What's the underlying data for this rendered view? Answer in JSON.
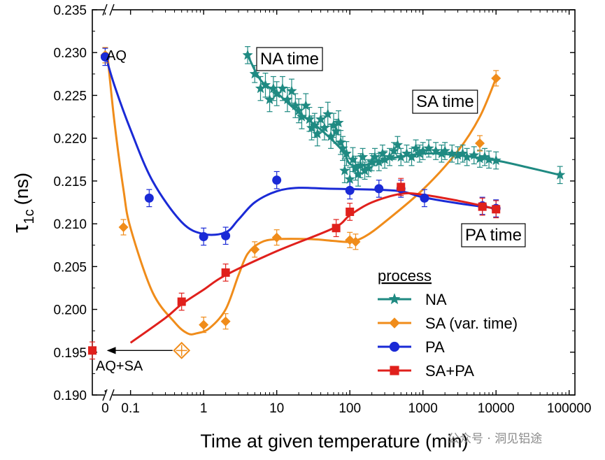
{
  "chart_data": {
    "type": "line",
    "xlabel": "Time at given temperature (min)",
    "ylabel_main": "τ",
    "ylabel_sub": "1c",
    "ylabel_unit": "(ns)",
    "xscale": "log",
    "xlim": [
      0.03,
      120000
    ],
    "ylim": [
      0.19,
      0.235
    ],
    "x_ticks": [
      {
        "label": "0",
        "value": 0.045
      },
      {
        "label": "0.1",
        "value": 0.1
      },
      {
        "label": "1",
        "value": 1
      },
      {
        "label": "10",
        "value": 10
      },
      {
        "label": "100",
        "value": 100
      },
      {
        "label": "1000",
        "value": 1000
      },
      {
        "label": "10000",
        "value": 10000
      },
      {
        "label": "100000",
        "value": 100000
      }
    ],
    "y_ticks": [
      "0.190",
      "0.195",
      "0.200",
      "0.205",
      "0.210",
      "0.215",
      "0.220",
      "0.225",
      "0.230",
      "0.235"
    ],
    "legend_title": "process",
    "series": [
      {
        "name": "NA",
        "color": "#1f8a82",
        "marker": "star",
        "points": [
          [
            4,
            0.2297
          ],
          [
            5,
            0.2275
          ],
          [
            6,
            0.2258
          ],
          [
            7,
            0.2262
          ],
          [
            8,
            0.2245
          ],
          [
            9,
            0.2258
          ],
          [
            10,
            0.2252
          ],
          [
            12,
            0.2258
          ],
          [
            14,
            0.2245
          ],
          [
            16,
            0.2255
          ],
          [
            18,
            0.2238
          ],
          [
            20,
            0.2232
          ],
          [
            22,
            0.2225
          ],
          [
            25,
            0.2238
          ],
          [
            28,
            0.2222
          ],
          [
            30,
            0.2212
          ],
          [
            33,
            0.2215
          ],
          [
            36,
            0.2205
          ],
          [
            40,
            0.2222
          ],
          [
            45,
            0.2212
          ],
          [
            50,
            0.2228
          ],
          [
            55,
            0.2202
          ],
          [
            60,
            0.2215
          ],
          [
            65,
            0.2208
          ],
          [
            70,
            0.2218
          ],
          [
            75,
            0.2195
          ],
          [
            80,
            0.2188
          ],
          [
            85,
            0.2162
          ],
          [
            90,
            0.2182
          ],
          [
            100,
            0.2152
          ],
          [
            110,
            0.2175
          ],
          [
            120,
            0.2165
          ],
          [
            130,
            0.2158
          ],
          [
            140,
            0.2168
          ],
          [
            150,
            0.2178
          ],
          [
            160,
            0.2162
          ],
          [
            180,
            0.2165
          ],
          [
            200,
            0.2172
          ],
          [
            220,
            0.2178
          ],
          [
            250,
            0.2172
          ],
          [
            280,
            0.2182
          ],
          [
            300,
            0.2175
          ],
          [
            350,
            0.2178
          ],
          [
            400,
            0.2185
          ],
          [
            450,
            0.2192
          ],
          [
            500,
            0.2178
          ],
          [
            600,
            0.2182
          ],
          [
            700,
            0.2178
          ],
          [
            800,
            0.2188
          ],
          [
            900,
            0.2182
          ],
          [
            1000,
            0.2185
          ],
          [
            1200,
            0.2188
          ],
          [
            1500,
            0.2185
          ],
          [
            1800,
            0.2182
          ],
          [
            2000,
            0.2185
          ],
          [
            2500,
            0.2182
          ],
          [
            3000,
            0.218
          ],
          [
            3500,
            0.2182
          ],
          [
            4000,
            0.2178
          ],
          [
            5000,
            0.218
          ],
          [
            6000,
            0.2176
          ],
          [
            7000,
            0.2178
          ],
          [
            8000,
            0.2175
          ],
          [
            10000,
            0.2174
          ],
          [
            75000,
            0.2157
          ]
        ],
        "fit": [
          [
            4,
            0.2297
          ],
          [
            6,
            0.2268
          ],
          [
            10,
            0.2253
          ],
          [
            20,
            0.223
          ],
          [
            40,
            0.221
          ],
          [
            80,
            0.2185
          ],
          [
            100,
            0.217
          ],
          [
            150,
            0.2168
          ],
          [
            300,
            0.2175
          ],
          [
            1000,
            0.2182
          ],
          [
            3000,
            0.218
          ],
          [
            10000,
            0.2174
          ],
          [
            30000,
            0.2165
          ],
          [
            75000,
            0.2157
          ]
        ]
      },
      {
        "name": "SA (var. time)",
        "color": "#f08c1a",
        "marker": "diamond",
        "points": [
          [
            0.045,
            0.2297
          ],
          [
            0.08,
            0.2096
          ],
          [
            1,
            0.1982
          ],
          [
            2,
            0.1986
          ],
          [
            5,
            0.207
          ],
          [
            10,
            0.2084
          ],
          [
            100,
            0.2081
          ],
          [
            120,
            0.2079
          ],
          [
            6000,
            0.2194
          ],
          [
            10000,
            0.227
          ]
        ],
        "hollow_point": [
          0.5,
          0.1952
        ],
        "fit": [
          [
            0.048,
            0.23
          ],
          [
            0.06,
            0.222
          ],
          [
            0.08,
            0.214
          ],
          [
            0.1,
            0.2095
          ],
          [
            0.2,
            0.202
          ],
          [
            0.4,
            0.1985
          ],
          [
            0.6,
            0.1972
          ],
          [
            0.8,
            0.1972
          ],
          [
            1.2,
            0.1978
          ],
          [
            2,
            0.2
          ],
          [
            3,
            0.204
          ],
          [
            4,
            0.2065
          ],
          [
            6,
            0.2078
          ],
          [
            10,
            0.2082
          ],
          [
            30,
            0.2082
          ],
          [
            60,
            0.208
          ],
          [
            100,
            0.2079
          ],
          [
            160,
            0.2085
          ],
          [
            300,
            0.2102
          ],
          [
            1000,
            0.214
          ],
          [
            3000,
            0.2185
          ],
          [
            6000,
            0.2225
          ],
          [
            10000,
            0.227
          ]
        ]
      },
      {
        "name": "PA",
        "color": "#1a2ad6",
        "marker": "circle",
        "points": [
          [
            0.045,
            0.2295
          ],
          [
            0.18,
            0.213
          ],
          [
            1,
            0.2085
          ],
          [
            2,
            0.2086
          ],
          [
            10,
            0.2151
          ],
          [
            100,
            0.2139
          ],
          [
            250,
            0.2141
          ],
          [
            500,
            0.2141
          ],
          [
            1050,
            0.213
          ],
          [
            6500,
            0.2121
          ],
          [
            10000,
            0.2118
          ]
        ],
        "fit": [
          [
            0.045,
            0.2298
          ],
          [
            0.06,
            0.2262
          ],
          [
            0.1,
            0.221
          ],
          [
            0.2,
            0.215
          ],
          [
            0.5,
            0.2102
          ],
          [
            1,
            0.2088
          ],
          [
            2,
            0.209
          ],
          [
            3,
            0.2105
          ],
          [
            5,
            0.2125
          ],
          [
            10,
            0.2138
          ],
          [
            20,
            0.2142
          ],
          [
            50,
            0.2141
          ],
          [
            200,
            0.214
          ],
          [
            500,
            0.2138
          ],
          [
            1000,
            0.2131
          ],
          [
            3000,
            0.2124
          ],
          [
            10000,
            0.2118
          ]
        ]
      },
      {
        "name": "SA+PA",
        "color": "#e0201c",
        "marker": "square",
        "points": [
          [
            0.03,
            0.1952
          ],
          [
            0.5,
            0.2009
          ],
          [
            2,
            0.2043
          ],
          [
            65,
            0.2095
          ],
          [
            100,
            0.2114
          ],
          [
            500,
            0.2143
          ],
          [
            6500,
            0.212
          ],
          [
            10000,
            0.2117
          ]
        ],
        "fit": [
          [
            0.1,
            0.1961
          ],
          [
            0.3,
            0.199
          ],
          [
            0.5,
            0.2006
          ],
          [
            1,
            0.2023
          ],
          [
            2,
            0.204
          ],
          [
            10,
            0.2068
          ],
          [
            60,
            0.2095
          ],
          [
            100,
            0.211
          ],
          [
            200,
            0.2125
          ],
          [
            500,
            0.2135
          ],
          [
            1000,
            0.2134
          ],
          [
            3000,
            0.2127
          ],
          [
            6500,
            0.2121
          ],
          [
            10000,
            0.2117
          ]
        ]
      }
    ],
    "annotations": {
      "aq": "AQ",
      "aq_sa": "AQ+SA",
      "na_time": "NA time",
      "sa_time": "SA time",
      "pa_time": "PA time"
    }
  },
  "watermark": "公众号 · 洞见铝途"
}
